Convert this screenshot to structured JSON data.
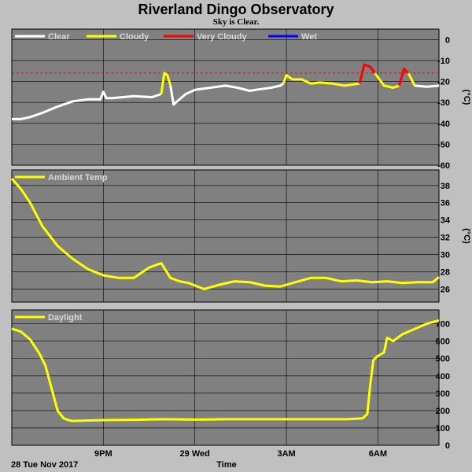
{
  "title": "Riverland Dingo Observatory",
  "subtitle": "Sky is Clear.",
  "colors": {
    "page_bg": "#c0c0c0",
    "plot_bg": "#808080",
    "grid": "#000000",
    "legend_text": "#d8d8d8"
  },
  "chart_data": [
    {
      "type": "line",
      "ylabel": "(°C)",
      "ylim": [
        -60,
        5
      ],
      "yticks": [
        0,
        -10,
        -20,
        -30,
        -40,
        -50,
        -60
      ],
      "threshold": {
        "value": -16,
        "color": "#ff0000"
      },
      "legend": [
        {
          "name": "Clear",
          "color": "#ffffff"
        },
        {
          "name": "Cloudy",
          "color": "#ffff00"
        },
        {
          "name": "Very Cloudy",
          "color": "#ff0000"
        },
        {
          "name": "Wet",
          "color": "#0000ff"
        }
      ],
      "segments": [
        {
          "series": "Clear",
          "color": "#ffffff",
          "x": [
            18.0,
            18.3,
            18.6,
            19.0,
            19.5,
            20.0,
            20.5,
            20.9,
            21.0,
            21.1,
            21.3,
            22.0,
            22.6,
            22.9
          ],
          "y": [
            -38,
            -38,
            -37,
            -35,
            -32,
            -29.5,
            -28.5,
            -28.5,
            -25,
            -28,
            -28,
            -27,
            -27.5,
            -26
          ]
        },
        {
          "series": "Cloudy",
          "color": "#ffff00",
          "x": [
            22.9,
            23.0,
            23.1,
            23.2
          ],
          "y": [
            -26,
            -16,
            -17,
            -22
          ]
        },
        {
          "series": "Clear",
          "color": "#ffffff",
          "x": [
            23.2,
            23.3,
            23.7,
            24.0,
            24.5,
            25.0,
            25.4,
            25.8,
            26.0,
            26.5,
            26.8,
            26.9
          ],
          "y": [
            -22,
            -31,
            -26,
            -24,
            -23,
            -22,
            -23,
            -24.5,
            -24,
            -23,
            -22,
            -21
          ]
        },
        {
          "series": "Cloudy",
          "color": "#ffff00",
          "x": [
            26.9,
            27.0,
            27.2,
            27.5,
            27.8,
            28.1,
            28.5,
            28.9,
            29.4
          ],
          "y": [
            -21,
            -17,
            -19,
            -19,
            -21,
            -20.5,
            -21,
            -22,
            -21
          ]
        },
        {
          "series": "Very Cloudy",
          "color": "#ff0000",
          "x": [
            29.4,
            29.55,
            29.75,
            29.9
          ],
          "y": [
            -21,
            -12,
            -13,
            -16
          ]
        },
        {
          "series": "Cloudy",
          "color": "#ffff00",
          "x": [
            29.9,
            30.2,
            30.5,
            30.7
          ],
          "y": [
            -16,
            -22,
            -23,
            -22
          ]
        },
        {
          "series": "Very Cloudy",
          "color": "#ff0000",
          "x": [
            30.7,
            30.85,
            31.0
          ],
          "y": [
            -22,
            -14,
            -16
          ]
        },
        {
          "series": "Cloudy",
          "color": "#ffff00",
          "x": [
            31.0,
            31.2
          ],
          "y": [
            -16,
            -22
          ]
        },
        {
          "series": "Clear",
          "color": "#ffffff",
          "x": [
            31.2,
            31.6,
            32.0
          ],
          "y": [
            -22,
            -22.5,
            -22
          ]
        }
      ]
    },
    {
      "type": "line",
      "ylabel": "(°C)",
      "ylim": [
        24.5,
        39.8
      ],
      "yticks": [
        38,
        36,
        34,
        32,
        30,
        28,
        26
      ],
      "legend": [
        {
          "name": "Ambient Temp",
          "color": "#ffff00"
        }
      ],
      "series": [
        {
          "name": "Ambient Temp",
          "color": "#ffff00",
          "x": [
            18.0,
            18.3,
            18.6,
            19.0,
            19.5,
            20.0,
            20.5,
            21.0,
            21.5,
            22.0,
            22.5,
            22.9,
            23.2,
            23.5,
            23.8,
            24.3,
            24.8,
            25.3,
            25.8,
            26.3,
            26.8,
            27.3,
            27.8,
            28.3,
            28.8,
            29.3,
            29.8,
            30.3,
            30.8,
            31.3,
            31.8,
            32.0
          ],
          "y": [
            38.8,
            37.6,
            36.0,
            33.3,
            31.0,
            29.5,
            28.3,
            27.6,
            27.3,
            27.3,
            28.5,
            29.0,
            27.3,
            26.9,
            26.7,
            26.0,
            26.5,
            26.9,
            26.8,
            26.4,
            26.3,
            26.8,
            27.3,
            27.3,
            26.9,
            27.0,
            26.8,
            26.9,
            26.7,
            26.8,
            26.8,
            27.4
          ]
        }
      ]
    },
    {
      "type": "line",
      "ylabel": "",
      "ylim": [
        0,
        780
      ],
      "yticks": [
        700,
        600,
        500,
        400,
        300,
        200,
        100,
        0
      ],
      "legend": [
        {
          "name": "Daylight",
          "color": "#ffff00"
        }
      ],
      "series": [
        {
          "name": "Daylight",
          "color": "#ffff00",
          "x": [
            18.0,
            18.3,
            18.6,
            18.9,
            19.1,
            19.3,
            19.5,
            19.7,
            19.85,
            20.0,
            20.5,
            21.0,
            22.0,
            23.0,
            24.0,
            25.0,
            26.0,
            27.0,
            28.0,
            29.0,
            29.5,
            29.65,
            29.75,
            29.85,
            30.0,
            30.2,
            30.3,
            30.5,
            30.8,
            31.2,
            31.6,
            32.0
          ],
          "y": [
            672,
            655,
            610,
            530,
            460,
            330,
            200,
            155,
            145,
            140,
            143,
            145,
            147,
            150,
            148,
            150,
            150,
            150,
            150,
            150,
            155,
            180,
            350,
            490,
            515,
            535,
            620,
            600,
            640,
            670,
            700,
            720
          ]
        }
      ]
    }
  ],
  "x_axis": {
    "tick_labels": [
      {
        "t": 21,
        "label": "9PM"
      },
      {
        "t": 24,
        "label": "29 Wed"
      },
      {
        "t": 27,
        "label": "3AM"
      },
      {
        "t": 30,
        "label": "6AM"
      }
    ],
    "date_label": "28 Tue Nov 2017",
    "label": "Time"
  }
}
